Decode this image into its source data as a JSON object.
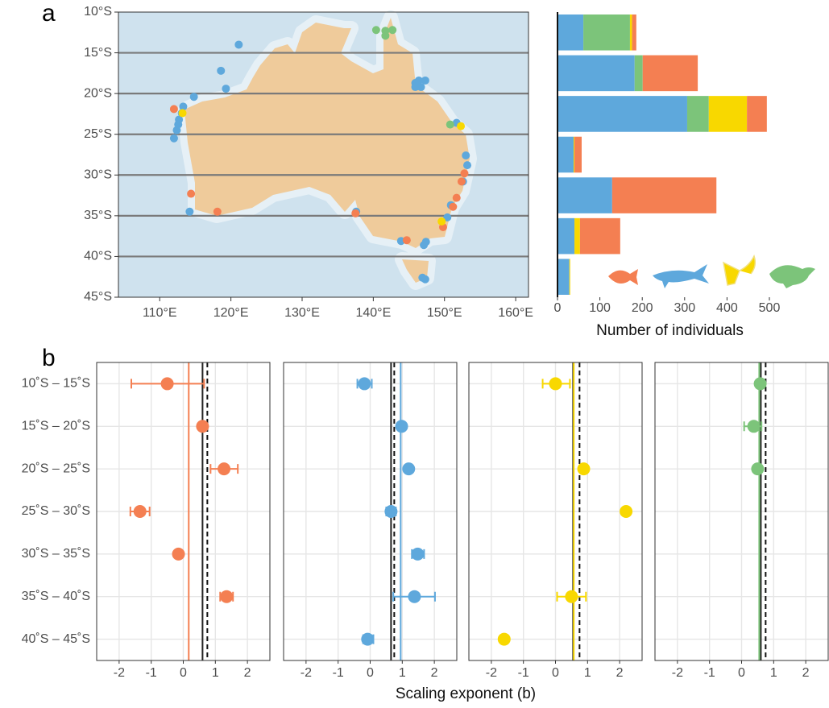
{
  "panel_labels": [
    "a",
    "b"
  ],
  "chart_data": [
    {
      "type": "scatter",
      "xlim": [
        104.2,
        161.8
      ],
      "ylim": [
        -45,
        -10
      ],
      "xticks": [
        {
          "value": 110,
          "label": "110°E"
        },
        {
          "value": 120,
          "label": "120°E"
        },
        {
          "value": 130,
          "label": "130°E"
        },
        {
          "value": 140,
          "label": "140°E"
        },
        {
          "value": 150,
          "label": "150°E"
        },
        {
          "value": 160,
          "label": "160°E"
        }
      ],
      "yticks": [
        {
          "value": -10,
          "label": "10°S"
        },
        {
          "value": -15,
          "label": "15°S"
        },
        {
          "value": -20,
          "label": "20°S"
        },
        {
          "value": -25,
          "label": "25°S"
        },
        {
          "value": -30,
          "label": "30°S"
        },
        {
          "value": -35,
          "label": "35°S"
        },
        {
          "value": -40,
          "label": "40°S"
        },
        {
          "value": -45,
          "label": "45°S"
        }
      ],
      "series": [
        {
          "color": "#5ea8dc",
          "x": [
            121.1,
            118.6,
            119.3,
            114.8,
            113.3,
            113.1,
            112.7,
            112.6,
            112.4,
            112.0,
            114.2,
            137.6,
            145.9,
            146.4,
            147.3,
            145.9,
            146.7,
            151.7,
            153.0,
            153.2,
            152.6,
            150.9,
            150.4,
            143.9,
            147.1,
            147.4,
            146.9,
            147.3
          ],
          "y": [
            -14.0,
            -17.2,
            -19.4,
            -20.4,
            -21.6,
            -22.4,
            -23.2,
            -23.8,
            -24.5,
            -25.5,
            -34.5,
            -34.5,
            -18.7,
            -18.4,
            -18.4,
            -19.2,
            -19.2,
            -23.6,
            -27.6,
            -28.8,
            -30.8,
            -33.7,
            -35.2,
            -38.1,
            -38.6,
            -38.2,
            -42.6,
            -42.8
          ]
        },
        {
          "color": "#f47f52",
          "x": [
            112.0,
            114.4,
            118.1,
            137.5,
            144.7,
            152.8,
            152.4,
            151.7,
            151.2,
            149.8
          ],
          "y": [
            -21.9,
            -32.3,
            -34.5,
            -34.7,
            -38.0,
            -29.8,
            -30.8,
            -32.8,
            -33.9,
            -36.4
          ]
        },
        {
          "color": "#f8d800",
          "x": [
            113.2,
            152.3,
            149.6
          ],
          "y": [
            -22.4,
            -24.0,
            -35.7
          ]
        },
        {
          "color": "#7cc47a",
          "x": [
            140.4,
            141.7,
            142.7,
            141.7,
            150.8
          ],
          "y": [
            -12.2,
            -12.3,
            -12.2,
            -12.9,
            -23.8
          ]
        }
      ]
    },
    {
      "type": "stacked-bar",
      "xlim": [
        0,
        500
      ],
      "xticks": [
        0,
        100,
        200,
        300,
        400,
        500
      ],
      "xlabel": "Number of individuals",
      "series": [
        {
          "color": "#5ea8dc",
          "values": [
            61,
            182,
            306,
            38,
            129,
            40,
            28
          ]
        },
        {
          "color": "#7cc47a",
          "values": [
            110,
            19,
            51,
            0,
            0,
            0,
            0
          ]
        },
        {
          "color": "#f8d800",
          "values": [
            5,
            0,
            90,
            2,
            0,
            13,
            2
          ]
        },
        {
          "color": "#f47f52",
          "values": [
            10,
            130,
            47,
            17,
            246,
            95,
            0
          ]
        }
      ]
    },
    {
      "type": "dot-error",
      "categories": [
        "10˚S – 15˚S",
        "15˚S – 20˚S",
        "20˚S – 25˚S",
        "25˚S – 30˚S",
        "30˚S – 35˚S",
        "35˚S – 40˚S",
        "40˚S – 45˚S"
      ],
      "xlabel": "Scaling exponent (b)",
      "xlim": [
        -2.7,
        2.7
      ],
      "xticks": [
        -2,
        -1,
        0,
        1,
        2
      ],
      "color": "#f47f52",
      "values": [
        -0.5,
        0.6,
        1.27,
        -1.35,
        -0.15,
        1.35,
        null
      ],
      "lower": [
        -1.62,
        0.5,
        0.85,
        -1.65,
        -0.22,
        1.15,
        null
      ],
      "upper": [
        0.65,
        0.7,
        1.7,
        -1.05,
        -0.08,
        1.55,
        null
      ],
      "reference_lines": [
        {
          "value": 0.17,
          "color": "#f47f52"
        },
        {
          "value": 0.6,
          "color": "#222222"
        },
        {
          "value": 0.75,
          "color": "#111111",
          "dashed": true
        }
      ]
    },
    {
      "type": "dot-error",
      "xlim": [
        -2.7,
        2.7
      ],
      "xticks": [
        -2,
        -1,
        0,
        1,
        2
      ],
      "color": "#5ea8dc",
      "values": [
        -0.18,
        0.98,
        1.2,
        0.65,
        1.48,
        1.38,
        -0.08
      ],
      "lower": [
        -0.4,
        0.92,
        1.14,
        0.5,
        1.3,
        0.72,
        -0.22
      ],
      "upper": [
        0.05,
        1.04,
        1.26,
        0.8,
        1.68,
        2.02,
        0.1
      ],
      "reference_lines": [
        {
          "value": 0.65,
          "color": "#222222"
        },
        {
          "value": 0.95,
          "color": "#5ea8dc"
        },
        {
          "value": 0.75,
          "color": "#111111",
          "dashed": true
        }
      ]
    },
    {
      "type": "dot-error",
      "xlim": [
        -2.7,
        2.7
      ],
      "xticks": [
        -2,
        -1,
        0,
        1,
        2
      ],
      "color": "#f8d800",
      "values": [
        0.0,
        null,
        0.88,
        2.2,
        null,
        0.5,
        -1.6
      ],
      "lower": [
        -0.4,
        null,
        null,
        null,
        null,
        0.05,
        null
      ],
      "upper": [
        0.45,
        null,
        null,
        null,
        null,
        0.95,
        null
      ],
      "reference_lines": [
        {
          "value": 0.55,
          "color": "#222222"
        },
        {
          "value": 0.57,
          "color": "#f8d800"
        },
        {
          "value": 0.75,
          "color": "#111111",
          "dashed": true
        }
      ]
    },
    {
      "type": "dot-error",
      "xlim": [
        -2.7,
        2.7
      ],
      "xticks": [
        -2,
        -1,
        0,
        1,
        2
      ],
      "color": "#7cc47a",
      "values": [
        0.58,
        0.38,
        0.5,
        null,
        null,
        null,
        null
      ],
      "lower": [
        null,
        0.08,
        null,
        null,
        null,
        null,
        null
      ],
      "upper": [
        null,
        0.62,
        null,
        null,
        null,
        null,
        null
      ],
      "reference_lines": [
        {
          "value": 0.6,
          "color": "#222222"
        },
        {
          "value": 0.55,
          "color": "#7cc47a"
        },
        {
          "value": 0.75,
          "color": "#111111",
          "dashed": true
        }
      ]
    }
  ]
}
